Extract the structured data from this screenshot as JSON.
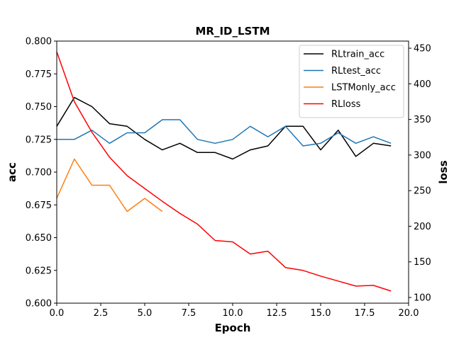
{
  "chart_data": {
    "type": "line",
    "title": "MR_ID_LSTM",
    "xlabel": "Epoch",
    "ylabel_left": "acc",
    "ylabel_right": "loss",
    "xlim": [
      0,
      20
    ],
    "ylim_left": [
      0.6,
      0.8
    ],
    "ylim_right": [
      92,
      460
    ],
    "x_ticks": [
      "0.0",
      "2.5",
      "5.0",
      "7.5",
      "10.0",
      "12.5",
      "15.0",
      "17.5",
      "20.0"
    ],
    "y_left_ticks": [
      "0.600",
      "0.625",
      "0.650",
      "0.675",
      "0.700",
      "0.725",
      "0.750",
      "0.775",
      "0.800"
    ],
    "y_right_ticks": [
      "100",
      "150",
      "200",
      "250",
      "300",
      "350",
      "400",
      "450"
    ],
    "grid": false,
    "legend_position": "top-right",
    "series": [
      {
        "name": "RLtrain_acc",
        "axis": "left",
        "color": "#000000",
        "x": [
          0,
          1,
          2,
          3,
          4,
          5,
          6,
          7,
          8,
          9,
          10,
          11,
          12,
          13,
          14,
          15,
          16,
          17,
          18,
          19
        ],
        "values": [
          0.735,
          0.757,
          0.75,
          0.737,
          0.735,
          0.725,
          0.717,
          0.722,
          0.715,
          0.715,
          0.71,
          0.717,
          0.72,
          0.735,
          0.735,
          0.717,
          0.732,
          0.712,
          0.722,
          0.72
        ]
      },
      {
        "name": "RLtest_acc",
        "axis": "left",
        "color": "#1f77b4",
        "x": [
          0,
          1,
          2,
          3,
          4,
          5,
          6,
          7,
          8,
          9,
          10,
          11,
          12,
          13,
          14,
          15,
          16,
          17,
          18,
          19
        ],
        "values": [
          0.725,
          0.725,
          0.732,
          0.722,
          0.73,
          0.73,
          0.74,
          0.74,
          0.725,
          0.722,
          0.725,
          0.735,
          0.727,
          0.735,
          0.72,
          0.722,
          0.73,
          0.722,
          0.727,
          0.722
        ]
      },
      {
        "name": "LSTMonly_acc",
        "axis": "left",
        "color": "#ff7f0e",
        "x": [
          0,
          1,
          2,
          3,
          4,
          5,
          6
        ],
        "values": [
          0.68,
          0.71,
          0.69,
          0.69,
          0.67,
          0.68,
          0.67
        ]
      },
      {
        "name": "RLloss",
        "axis": "right",
        "color": "#ff0000",
        "x": [
          0,
          1,
          2,
          3,
          4,
          5,
          6,
          7,
          8,
          9,
          10,
          11,
          12,
          13,
          14,
          15,
          16,
          17,
          18,
          19
        ],
        "values": [
          445,
          375,
          332,
          297,
          271,
          253,
          235,
          218,
          203,
          180,
          178,
          161,
          165,
          142,
          138,
          130,
          123,
          116,
          117,
          109
        ]
      }
    ]
  }
}
